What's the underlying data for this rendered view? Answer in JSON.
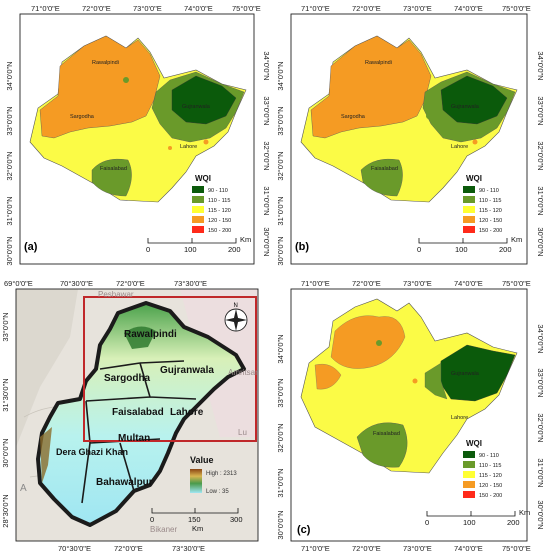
{
  "lon_labels_top": [
    "71°0'0\"E",
    "72°0'0\"E",
    "73°0'0\"E",
    "74°0'0\"E",
    "75°0'0\"E"
  ],
  "lat_labels": [
    "34°0'0\"N",
    "33°0'0\"N",
    "32°0'0\"N",
    "31°0'0\"N",
    "30°0'0\"N"
  ],
  "panel_c_lat_labels": [
    "34°0'0\"N",
    "33°0'0\"N",
    "32°0'0\"N",
    "31°0'0\"N",
    "30°0'0\"N"
  ],
  "study_lon_labels": [
    "69°0'0\"E",
    "70°30'0\"E",
    "72°0'0\"E",
    "73°30'0\"E"
  ],
  "study_lat_labels": [
    "33°0'0\"N",
    "31°30'0\"N",
    "30°0'0\"N",
    "28°30'0\"N"
  ],
  "panels": {
    "a": {
      "tag": "(a)",
      "city_labels": [
        "Rawalpindi",
        "Sargodha",
        "Gujranwala",
        "Lahore",
        "Faisalabad"
      ]
    },
    "b": {
      "tag": "(b)",
      "city_labels": [
        "Rawalpindi",
        "Sargodha",
        "Gujranwala",
        "Lahore",
        "Faisalabad"
      ]
    },
    "c": {
      "tag": "(c)",
      "city_labels": [
        "Gujranwala",
        "Lahore",
        "Faisalabad"
      ]
    }
  },
  "wqi_legend": {
    "title": "WQI",
    "items": [
      {
        "label": "90 - 110",
        "color": "#0b5a0b"
      },
      {
        "label": "110 - 115",
        "color": "#6a9a2a"
      },
      {
        "label": "115 - 120",
        "color": "#ffff33"
      },
      {
        "label": "120 - 150",
        "color": "#f59b23"
      },
      {
        "label": "150 - 200",
        "color": "#ff2a1a"
      }
    ]
  },
  "scale_bar": {
    "ticks": [
      "0",
      "100",
      "200"
    ],
    "unit": "Km"
  },
  "study_area": {
    "cities": [
      "Rawalpindi",
      "Sargodha",
      "Gujranwala",
      "Faisalabad",
      "Lahore",
      "Multan",
      "Dera Ghazi Khan",
      "Bahawalpur"
    ],
    "faint_labels": [
      "Peshawar",
      "Amritsar",
      "Lu",
      "Bikaner",
      "A"
    ],
    "legend": {
      "title": "Value",
      "high": "High : 2313",
      "low": "Low : 35"
    },
    "scale": {
      "ticks": [
        "0",
        "150",
        "300"
      ],
      "unit": "Km"
    },
    "north_arrow": "N"
  }
}
